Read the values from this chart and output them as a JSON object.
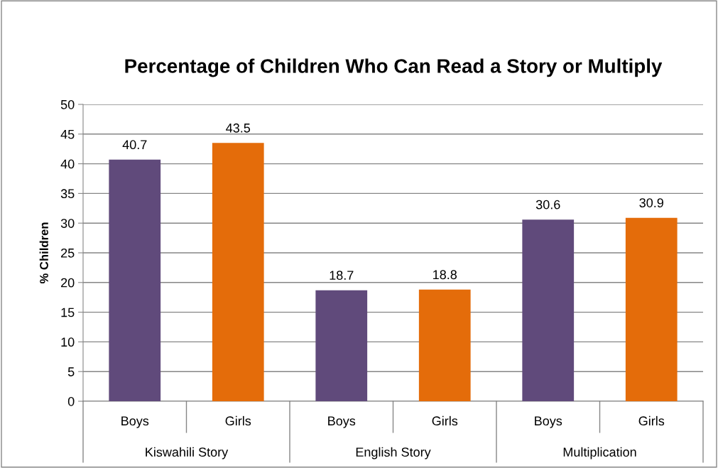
{
  "chart_data": {
    "type": "bar",
    "title": "Percentage of Children Who Can Read a Story or Multiply",
    "ylabel": "% Children",
    "categories": [
      "Boys",
      "Girls",
      "Boys",
      "Girls",
      "Boys",
      "Girls"
    ],
    "values": [
      40.7,
      43.5,
      18.7,
      18.8,
      30.6,
      30.9
    ],
    "colors": [
      "#604a7b",
      "#e46c0a",
      "#604a7b",
      "#e46c0a",
      "#604a7b",
      "#e46c0a"
    ],
    "annotations": [
      "Kiswahili Story",
      "English Story",
      "Multiplication"
    ],
    "ylim": [
      0,
      50
    ],
    "yticks": [
      0,
      5,
      10,
      15,
      20,
      25,
      30,
      35,
      40,
      45,
      50
    ],
    "grid": "y",
    "data_labels": true
  }
}
